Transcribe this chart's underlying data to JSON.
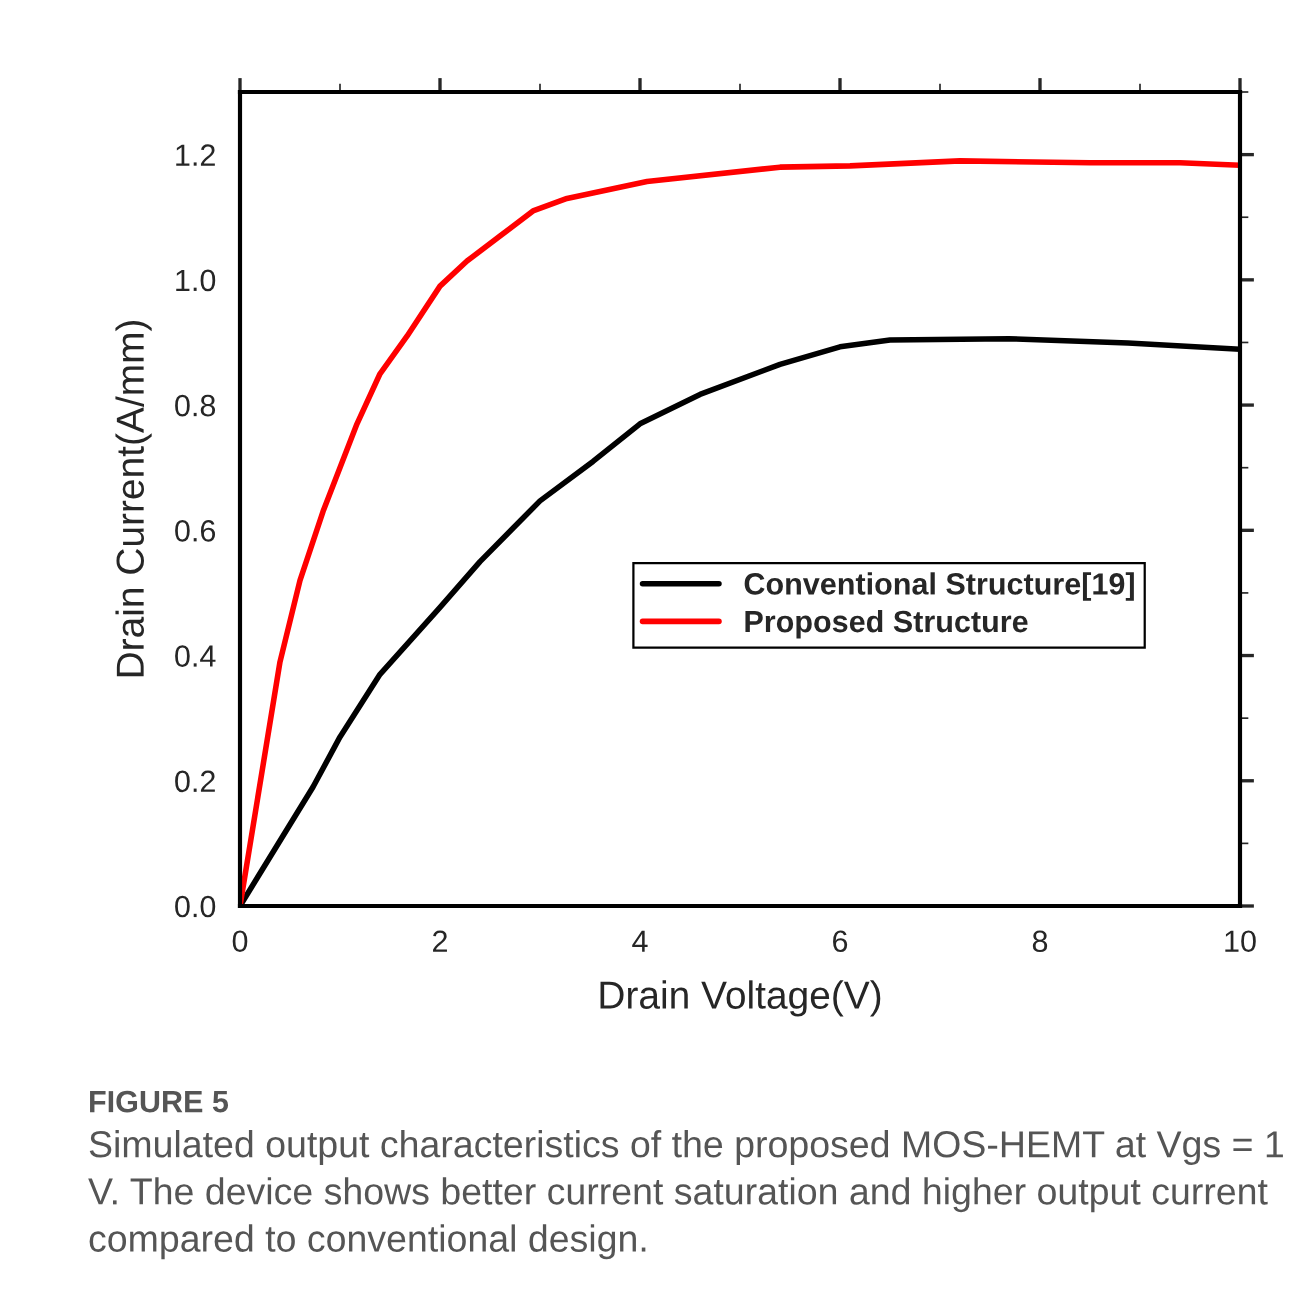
{
  "chart_data": {
    "type": "line",
    "xlabel": "Drain Voltage(V)",
    "ylabel": "Drain Current(A/mm)",
    "xlim": [
      0,
      10
    ],
    "ylim": [
      0,
      1.3
    ],
    "xticks": [
      0,
      2,
      4,
      6,
      8,
      10
    ],
    "yticks": [
      {
        "value": 0,
        "label": "0.0"
      },
      0.2,
      0.4,
      0.6,
      0.8,
      {
        "value": 1.0,
        "label": "1.0"
      },
      1.2
    ],
    "legend": "right",
    "grid": false,
    "line_style": "solid",
    "marker": "none",
    "series": [
      {
        "name": "Conventional Structure[19]",
        "color": "#000000",
        "x": [
          0,
          0.73,
          1.0,
          1.4,
          2.0,
          2.4,
          3.0,
          3.53,
          4.0,
          4.6,
          5.4,
          6.0,
          6.5,
          7.69,
          8.88,
          10
        ],
        "values": [
          0,
          0.19,
          0.27,
          0.37,
          0.477,
          0.55,
          0.647,
          0.71,
          0.77,
          0.817,
          0.865,
          0.893,
          0.904,
          0.906,
          0.899,
          0.889
        ]
      },
      {
        "name": "Proposed Structure",
        "color": "#ff0000",
        "x": [
          0,
          0.4,
          0.6,
          0.83,
          1.17,
          1.4,
          1.67,
          2.0,
          2.27,
          2.6,
          2.93,
          3.27,
          4.07,
          5.4,
          6.1,
          7.2,
          8.5,
          9.4,
          10
        ],
        "values": [
          0,
          0.39,
          0.52,
          0.63,
          0.77,
          0.85,
          0.91,
          0.99,
          1.03,
          1.07,
          1.11,
          1.13,
          1.157,
          1.18,
          1.182,
          1.19,
          1.187,
          1.187,
          1.183
        ]
      }
    ],
    "annotations": [
      "FIGURE 5",
      "Simulated output characteristics of the proposed MOS-HEMT at Vgs = 1 V. The device shows better current saturation and higher output current compared to conventional design."
    ]
  }
}
